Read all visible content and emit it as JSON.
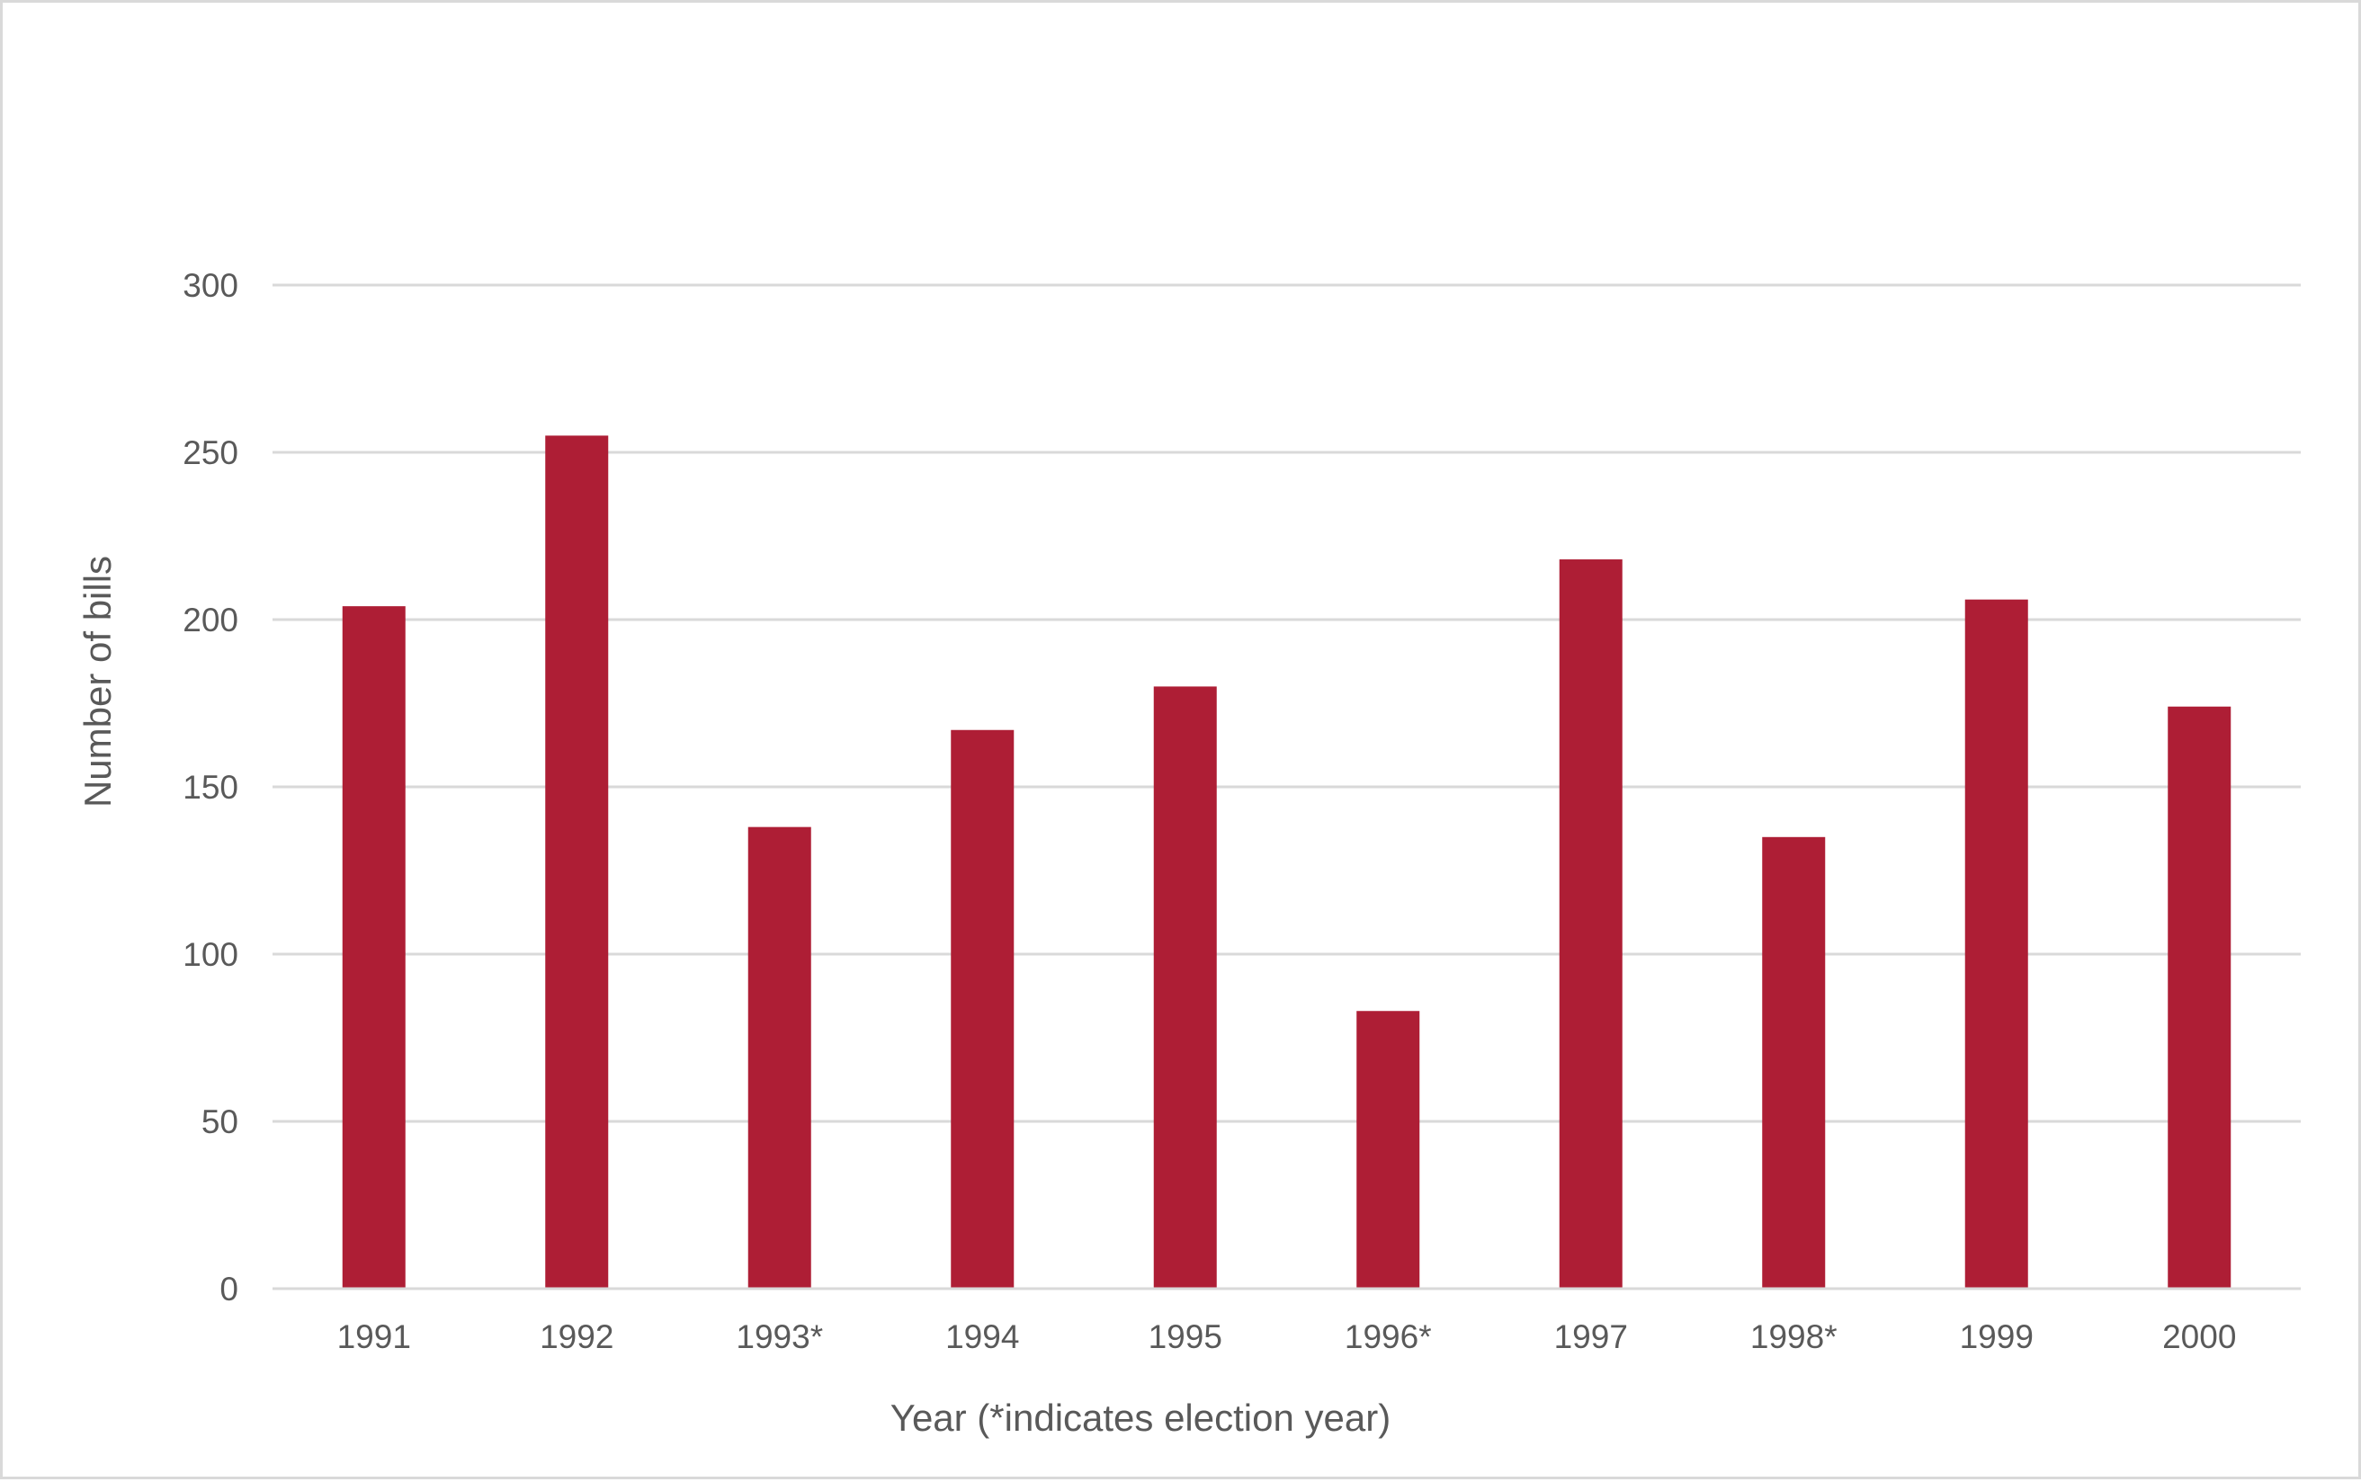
{
  "chart_data": {
    "type": "bar",
    "title": "",
    "xlabel": "Year (*indicates election year)",
    "ylabel": "Number of bills",
    "categories": [
      "1991",
      "1992",
      "1993*",
      "1994",
      "1995",
      "1996*",
      "1997",
      "1998*",
      "1999",
      "2000"
    ],
    "values": [
      204,
      255,
      138,
      167,
      180,
      83,
      218,
      135,
      206,
      174
    ],
    "ylim": [
      0,
      300
    ],
    "yticks": [
      "0",
      "50",
      "100",
      "150",
      "200",
      "250",
      "300"
    ],
    "grid": true,
    "legend": "none",
    "bar_color": "#ae1e35",
    "grid_color": "#d9d9d9",
    "text_color": "#595959"
  }
}
